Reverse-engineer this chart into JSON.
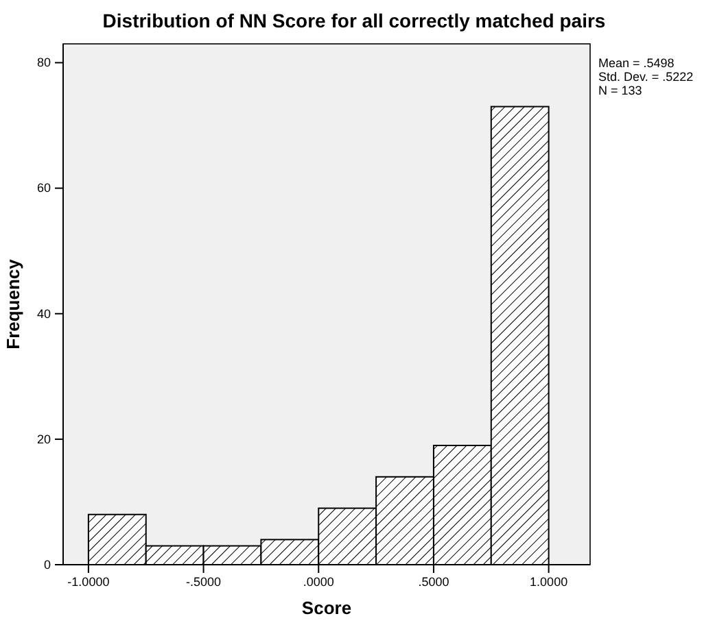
{
  "chart_data": {
    "type": "histogram",
    "title": "Distribution of NN Score for all correctly matched pairs",
    "xlabel": "Score",
    "ylabel": "Frequency",
    "bins": [
      -1.0,
      -0.75,
      -0.5,
      -0.25,
      0.0,
      0.25,
      0.5,
      0.75,
      1.0
    ],
    "values": [
      8,
      3,
      3,
      4,
      9,
      14,
      19,
      73
    ],
    "color": "#000000",
    "xlim": [
      -1.11,
      1.18
    ],
    "xticks": [
      {
        "value": -1.0,
        "label": "-1.0000"
      },
      {
        "value": -0.5,
        "label": "-.5000"
      },
      {
        "value": 0.0,
        "label": ".0000"
      },
      {
        "value": 0.5,
        "label": ".5000"
      },
      {
        "value": 1.0,
        "label": "1.0000"
      }
    ],
    "ylim": [
      0,
      83
    ],
    "yticks": [
      0,
      20,
      40,
      60,
      80
    ],
    "grid": false,
    "annotations": [
      "Mean = .5498",
      "Std. Dev. = .5222",
      "N = 133"
    ]
  }
}
